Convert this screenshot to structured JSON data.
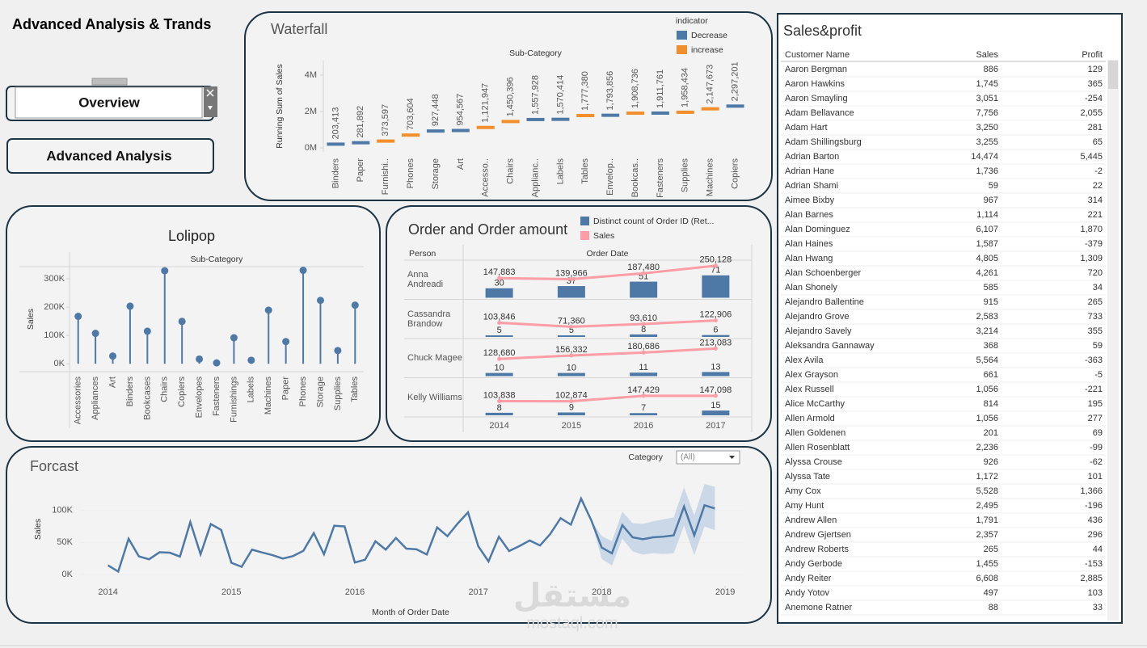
{
  "header": {
    "title": "Advanced Analysis & Trands",
    "buttons": [
      "Overview",
      "Advanced Analysis"
    ]
  },
  "watermark": {
    "logo": "مستقل",
    "site": "mostaql.com"
  },
  "chart_data": [
    {
      "type": "waterfall",
      "title": "Waterfall",
      "x_title": "Sub-Category",
      "y_title": "Running Sum of Sales",
      "legend_title": "indicator",
      "series": [
        {
          "name": "Decrease",
          "color": "#4e79a7"
        },
        {
          "name": "increase",
          "color": "#f28e2b"
        }
      ],
      "categories": [
        "Binders",
        "Paper",
        "Furnishi..",
        "Phones",
        "Storage",
        "Art",
        "Accesso..",
        "Chairs",
        "Applianc..",
        "Labels",
        "Tables",
        "Envelop..",
        "Bookcas..",
        "Fasteners",
        "Supplies",
        "Machines",
        "Copiers"
      ],
      "values": [
        203413,
        281892,
        373597,
        703604,
        927448,
        954567,
        1121947,
        1450396,
        1557928,
        1570414,
        1777380,
        1793856,
        1908736,
        1911761,
        1958434,
        2147673,
        2297201
      ],
      "value_labels": [
        "203,413",
        "281,892",
        "373,597",
        "703,604",
        "927,448",
        "954,567",
        "1,121,947",
        "1,450,396",
        "1,557,928",
        "1,570,414",
        "1,777,380",
        "1,793,856",
        "1,908,736",
        "1,911,761",
        "1,958,434",
        "2,147,673",
        "2,297,201"
      ],
      "bar_colors": [
        "#4e79a7",
        "#4e79a7",
        "#f28e2b",
        "#f28e2b",
        "#4e79a7",
        "#4e79a7",
        "#f28e2b",
        "#f28e2b",
        "#4e79a7",
        "#4e79a7",
        "#f28e2b",
        "#4e79a7",
        "#f28e2b",
        "#4e79a7",
        "#f28e2b",
        "#f28e2b",
        "#4e79a7"
      ],
      "ylim": [
        -222000,
        4800000
      ],
      "yticks": [
        {
          "value": 0,
          "label": "0M"
        },
        {
          "value": 2000000,
          "label": "2M"
        },
        {
          "value": 4000000,
          "label": "4M"
        }
      ]
    },
    {
      "type": "lollipop",
      "title": "Lolipop",
      "x_title": "Sub-Category",
      "y_title": "Sales",
      "color": "#4e79a7",
      "categories": [
        "Accessories",
        "Appliances",
        "Art",
        "Binders",
        "Bookcases",
        "Chairs",
        "Copiers",
        "Envelopes",
        "Fasteners",
        "Furnishings",
        "Labels",
        "Machines",
        "Paper",
        "Phones",
        "Storage",
        "Supplies",
        "Tables"
      ],
      "values": [
        167380,
        107532,
        27119,
        203413,
        114880,
        328449,
        149528,
        16476,
        3024,
        91705,
        12486,
        189239,
        78479,
        330007,
        223844,
        46674,
        206966
      ],
      "ylim": [
        -28000,
        343000
      ],
      "yticks": [
        {
          "value": 0,
          "label": "0K"
        },
        {
          "value": 100000,
          "label": "100K"
        },
        {
          "value": 200000,
          "label": "200K"
        },
        {
          "value": 300000,
          "label": "300K"
        }
      ]
    },
    {
      "type": "combo",
      "title": "Order and Order amount",
      "row_header": "Person",
      "column_header": "Order Date",
      "series": [
        {
          "name": "Distinct count of Order ID (Ret...",
          "color": "#4e79a7"
        },
        {
          "name": "Sales",
          "color": "#ff9da7"
        }
      ],
      "categories": [
        "2014",
        "2015",
        "2016",
        "2017"
      ],
      "rows": [
        {
          "name": "Anna Andreadi",
          "counts": [
            30,
            37,
            51,
            71
          ],
          "sales": [
            147883,
            139966,
            187480,
            250128
          ],
          "sales_labels": [
            "147,883",
            "139,966",
            "187,480",
            "250,128"
          ]
        },
        {
          "name": "Cassandra Brandow",
          "counts": [
            5,
            5,
            8,
            6
          ],
          "sales": [
            103846,
            71360,
            93610,
            122906
          ],
          "sales_labels": [
            "103,846",
            "71,360",
            "93,610",
            "122,906"
          ]
        },
        {
          "name": "Chuck Magee",
          "counts": [
            10,
            10,
            11,
            13
          ],
          "sales": [
            128680,
            156332,
            180686,
            213083
          ],
          "sales_labels": [
            "128,680",
            "156,332",
            "180,686",
            "213,083"
          ]
        },
        {
          "name": "Kelly Williams",
          "counts": [
            8,
            9,
            7,
            15
          ],
          "sales": [
            103838,
            102874,
            147429,
            147098
          ],
          "sales_labels": [
            "103,838",
            "102,874",
            "147,429",
            "147,098"
          ]
        }
      ],
      "ylim": [
        0,
        114
      ],
      "y2lim": [
        -12000,
        282000
      ]
    },
    {
      "type": "forecast",
      "title": "Forcast",
      "x_title": "Month of Order Date",
      "y_title": "Sales",
      "filter_label": "Category",
      "filter_value": "(All)",
      "color": "#4e79a7",
      "band_color": "#c3d2e5",
      "x": [
        2014,
        2014.083,
        2014.167,
        2014.25,
        2014.333,
        2014.417,
        2014.5,
        2014.583,
        2014.667,
        2014.75,
        2014.833,
        2014.917,
        2015,
        2015.083,
        2015.167,
        2015.25,
        2015.333,
        2015.417,
        2015.5,
        2015.583,
        2015.667,
        2015.75,
        2015.833,
        2015.917,
        2016,
        2016.083,
        2016.167,
        2016.25,
        2016.333,
        2016.417,
        2016.5,
        2016.583,
        2016.667,
        2016.75,
        2016.833,
        2016.917,
        2017,
        2017.083,
        2017.167,
        2017.25,
        2017.333,
        2017.417,
        2017.5,
        2017.583,
        2017.667,
        2017.75,
        2017.833,
        2017.917,
        2018,
        2018.083,
        2018.167,
        2018.25,
        2018.333,
        2018.417,
        2018.5,
        2018.583,
        2018.667,
        2018.75,
        2018.833,
        2018.917
      ],
      "values": [
        14237,
        4520,
        55691,
        28295,
        23648,
        34595,
        33946,
        27909,
        81777,
        31453,
        78629,
        69546,
        18174,
        11951,
        38726,
        34195,
        30132,
        24797,
        28765,
        36898,
        64596,
        31405,
        75973,
        74920,
        18542,
        22979,
        51716,
        38750,
        56988,
        40345,
        39262,
        31115,
        73410,
        59688,
        79412,
        96999,
        43971,
        20301,
        58872,
        36522,
        44261,
        52982,
        45264,
        63121,
        87867,
        77777,
        118448,
        83829,
        42000,
        33000,
        77000,
        58000,
        55000,
        58000,
        59000,
        61000,
        106000,
        61000,
        108000,
        103000
      ],
      "band_lower": [
        null,
        null,
        null,
        null,
        null,
        null,
        null,
        null,
        null,
        null,
        null,
        null,
        null,
        null,
        null,
        null,
        null,
        null,
        null,
        null,
        null,
        null,
        null,
        null,
        null,
        null,
        null,
        null,
        null,
        null,
        null,
        null,
        null,
        null,
        null,
        null,
        null,
        null,
        null,
        null,
        null,
        null,
        null,
        null,
        null,
        null,
        null,
        83829,
        24000,
        14000,
        56000,
        36000,
        31000,
        33000,
        32000,
        33000,
        76000,
        30000,
        75000,
        69000
      ],
      "band_upper": [
        null,
        null,
        null,
        null,
        null,
        null,
        null,
        null,
        null,
        null,
        null,
        null,
        null,
        null,
        null,
        null,
        null,
        null,
        null,
        null,
        null,
        null,
        null,
        null,
        null,
        null,
        null,
        null,
        null,
        null,
        null,
        null,
        null,
        null,
        null,
        null,
        null,
        null,
        null,
        null,
        null,
        null,
        null,
        null,
        null,
        null,
        null,
        83829,
        60000,
        52000,
        98000,
        80000,
        79000,
        83000,
        86000,
        89000,
        136000,
        92000,
        141000,
        137000
      ],
      "xlim": [
        2013.78,
        2019.15
      ],
      "xticks": [
        2014,
        2015,
        2016,
        2017,
        2018,
        2019
      ],
      "ylim": [
        -17700,
        145000
      ],
      "yticks": [
        {
          "value": 0,
          "label": "0K"
        },
        {
          "value": 50000,
          "label": "50K"
        },
        {
          "value": 100000,
          "label": "100K"
        }
      ],
      "grid": true
    }
  ],
  "table": {
    "title": "Sales&profit",
    "columns": [
      "Customer Name",
      "Sales",
      "Profit"
    ],
    "rows": [
      [
        "Aaron Bergman",
        "886",
        "129"
      ],
      [
        "Aaron Hawkins",
        "1,745",
        "365"
      ],
      [
        "Aaron Smayling",
        "3,051",
        "-254"
      ],
      [
        "Adam Bellavance",
        "7,756",
        "2,055"
      ],
      [
        "Adam Hart",
        "3,250",
        "281"
      ],
      [
        "Adam Shillingsburg",
        "3,255",
        "65"
      ],
      [
        "Adrian Barton",
        "14,474",
        "5,445"
      ],
      [
        "Adrian Hane",
        "1,736",
        "-2"
      ],
      [
        "Adrian Shami",
        "59",
        "22"
      ],
      [
        "Aimee Bixby",
        "967",
        "314"
      ],
      [
        "Alan Barnes",
        "1,114",
        "221"
      ],
      [
        "Alan Dominguez",
        "6,107",
        "1,870"
      ],
      [
        "Alan Haines",
        "1,587",
        "-379"
      ],
      [
        "Alan Hwang",
        "4,805",
        "1,309"
      ],
      [
        "Alan Schoenberger",
        "4,261",
        "720"
      ],
      [
        "Alan Shonely",
        "585",
        "34"
      ],
      [
        "Alejandro Ballentine",
        "915",
        "265"
      ],
      [
        "Alejandro Grove",
        "2,583",
        "733"
      ],
      [
        "Alejandro Savely",
        "3,214",
        "355"
      ],
      [
        "Aleksandra Gannaway",
        "368",
        "59"
      ],
      [
        "Alex Avila",
        "5,564",
        "-363"
      ],
      [
        "Alex Grayson",
        "661",
        "-5"
      ],
      [
        "Alex Russell",
        "1,056",
        "-221"
      ],
      [
        "Alice McCarthy",
        "814",
        "195"
      ],
      [
        "Allen Armold",
        "1,056",
        "277"
      ],
      [
        "Allen Goldenen",
        "201",
        "69"
      ],
      [
        "Allen Rosenblatt",
        "2,236",
        "-99"
      ],
      [
        "Alyssa Crouse",
        "926",
        "-62"
      ],
      [
        "Alyssa Tate",
        "1,172",
        "101"
      ],
      [
        "Amy Cox",
        "5,528",
        "1,366"
      ],
      [
        "Amy Hunt",
        "2,495",
        "-196"
      ],
      [
        "Andrew Allen",
        "1,791",
        "436"
      ],
      [
        "Andrew Gjertsen",
        "2,357",
        "296"
      ],
      [
        "Andrew Roberts",
        "265",
        "44"
      ],
      [
        "Andy Gerbode",
        "1,455",
        "-153"
      ],
      [
        "Andy Reiter",
        "6,608",
        "2,885"
      ],
      [
        "Andy Yotov",
        "497",
        "103"
      ],
      [
        "Anemone Ratner",
        "88",
        "33"
      ]
    ]
  }
}
